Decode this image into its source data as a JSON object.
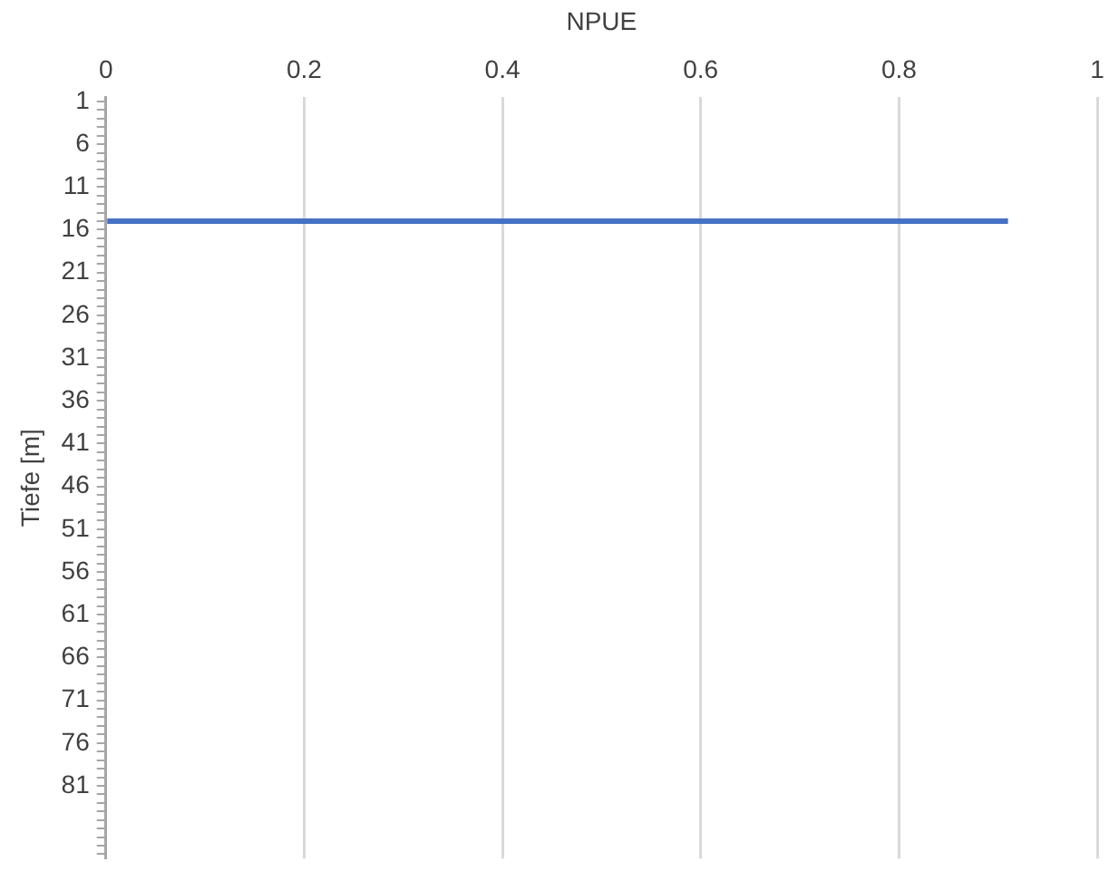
{
  "chart_data": {
    "type": "bar",
    "orientation": "horizontal",
    "xlabel": "NPUE",
    "ylabel": "Tiefe [m]",
    "categories": [
      "1",
      null,
      null,
      null,
      null,
      "6",
      null,
      null,
      null,
      null,
      "11",
      null,
      null,
      null,
      null,
      "16",
      null,
      null,
      null,
      null,
      "21",
      null,
      null,
      null,
      null,
      "26",
      null,
      null,
      null,
      null,
      "31",
      null,
      null,
      null,
      null,
      "36",
      null,
      null,
      null,
      null,
      "41",
      null,
      null,
      null,
      null,
      "46",
      null,
      null,
      null,
      null,
      "51",
      null,
      null,
      null,
      null,
      "56",
      null,
      null,
      null,
      null,
      "61",
      null,
      null,
      null,
      null,
      "66",
      null,
      null,
      null,
      null,
      "71",
      null,
      null,
      null,
      null,
      "76",
      null,
      null,
      null,
      null,
      "81",
      null,
      null,
      null,
      null,
      null,
      null,
      null,
      null
    ],
    "values": [
      null,
      null,
      null,
      null,
      null,
      null,
      null,
      null,
      null,
      null,
      null,
      null,
      null,
      null,
      0.91,
      null,
      null,
      null,
      null,
      null,
      null,
      null,
      null,
      null,
      null,
      null,
      null,
      null,
      null,
      null,
      null,
      null,
      null,
      null,
      null,
      null,
      null,
      null,
      null,
      null,
      null,
      null,
      null,
      null,
      null,
      null,
      null,
      null,
      null,
      null,
      null,
      null,
      null,
      null,
      null,
      null,
      null,
      null,
      null,
      null,
      null,
      null,
      null,
      null,
      null,
      null,
      null,
      null,
      null,
      null,
      null,
      null,
      null,
      null,
      null,
      null,
      null,
      null,
      null,
      null,
      null,
      null,
      null,
      null,
      null,
      null,
      null,
      null,
      null
    ],
    "color": "#4472c4",
    "xlim": [
      0,
      1
    ],
    "xticks": [
      0,
      0.2,
      0.4,
      0.6,
      0.8,
      1
    ],
    "grid": "x",
    "legend": false
  }
}
